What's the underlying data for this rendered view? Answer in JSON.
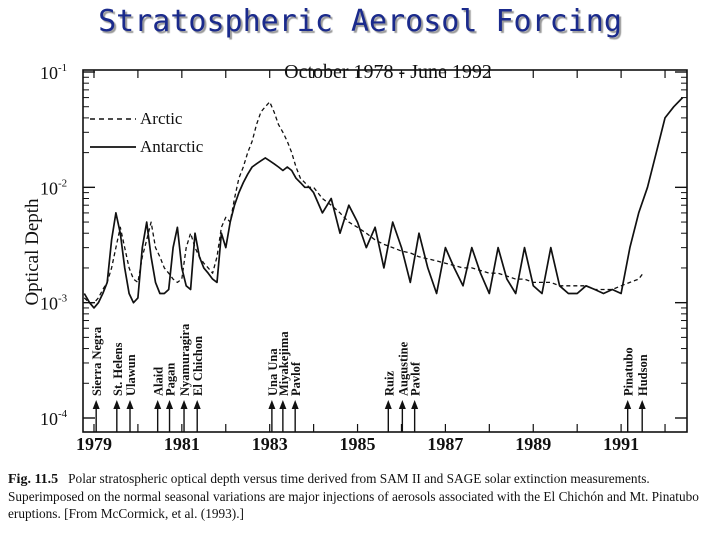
{
  "slide": {
    "title": "Stratospheric Aerosol Forcing"
  },
  "chart_data": {
    "type": "line",
    "title": "October 1978 - June 1992",
    "xlabel": "",
    "ylabel": "Optical Depth",
    "yscale": "log",
    "ylim": [
      0.0001,
      0.1
    ],
    "xlim": [
      1978.75,
      1992.5
    ],
    "yticks": [
      "10-1",
      "10-2",
      "10-3",
      "10-4"
    ],
    "yticks_base": [
      "10",
      "10",
      "10",
      "10"
    ],
    "yticks_exp": [
      "-1",
      "-2",
      "-3",
      "-4"
    ],
    "xticks": [
      1979,
      1981,
      1983,
      1985,
      1987,
      1989,
      1991
    ],
    "xtick_labels": [
      "1979",
      "1981",
      "1983",
      "1985",
      "1987",
      "1989",
      "1991"
    ],
    "grid": false,
    "legend_position": "top-left",
    "series": [
      {
        "name": "Arctic",
        "style": "dashed",
        "x": [
          1978.78,
          1978.9,
          1979.0,
          1979.1,
          1979.2,
          1979.3,
          1979.4,
          1979.5,
          1979.6,
          1979.7,
          1979.8,
          1979.9,
          1980.0,
          1980.1,
          1980.2,
          1980.3,
          1980.4,
          1980.5,
          1980.6,
          1980.7,
          1980.8,
          1980.9,
          1981.0,
          1981.1,
          1981.2,
          1981.3,
          1981.4,
          1981.5,
          1981.6,
          1981.7,
          1981.8,
          1981.9,
          1982.0,
          1982.1,
          1982.2,
          1982.3,
          1982.4,
          1982.5,
          1982.6,
          1982.7,
          1982.8,
          1982.9,
          1983.0,
          1983.1,
          1983.2,
          1983.3,
          1983.4,
          1983.5,
          1983.6,
          1983.7,
          1983.8,
          1983.9,
          1984.0,
          1984.2,
          1984.4,
          1984.6,
          1984.8,
          1985.0,
          1985.2,
          1985.4,
          1985.6,
          1985.8,
          1986.0,
          1986.2,
          1986.4,
          1986.6,
          1986.8,
          1987.0,
          1987.2,
          1987.4,
          1987.6,
          1987.8,
          1988.0,
          1988.2,
          1988.4,
          1988.6,
          1988.8,
          1989.0,
          1989.2,
          1989.4,
          1989.6,
          1989.8,
          1990.0,
          1990.2,
          1990.4,
          1990.6,
          1990.8,
          1991.0,
          1991.2,
          1991.4,
          1991.5
        ],
        "y": [
          0.0011,
          0.001,
          0.001,
          0.0011,
          0.0013,
          0.0015,
          0.002,
          0.003,
          0.0045,
          0.003,
          0.002,
          0.0016,
          0.0015,
          0.0025,
          0.0035,
          0.005,
          0.003,
          0.0025,
          0.002,
          0.0018,
          0.0016,
          0.0015,
          0.0016,
          0.003,
          0.004,
          0.003,
          0.0025,
          0.0022,
          0.002,
          0.0018,
          0.0025,
          0.0045,
          0.0055,
          0.005,
          0.008,
          0.012,
          0.015,
          0.02,
          0.025,
          0.035,
          0.045,
          0.05,
          0.055,
          0.045,
          0.035,
          0.03,
          0.025,
          0.02,
          0.015,
          0.012,
          0.011,
          0.01,
          0.01,
          0.008,
          0.007,
          0.006,
          0.005,
          0.0045,
          0.004,
          0.0035,
          0.0032,
          0.003,
          0.0028,
          0.0027,
          0.0025,
          0.0024,
          0.0023,
          0.0022,
          0.0021,
          0.002,
          0.002,
          0.0019,
          0.0018,
          0.0018,
          0.0017,
          0.0016,
          0.0016,
          0.0015,
          0.0015,
          0.0015,
          0.0014,
          0.0014,
          0.0014,
          0.0014,
          0.0013,
          0.0013,
          0.0013,
          0.0014,
          0.0015,
          0.0016,
          0.0018
        ]
      },
      {
        "name": "Antarctic",
        "style": "solid",
        "x": [
          1978.78,
          1978.9,
          1979.0,
          1979.1,
          1979.2,
          1979.3,
          1979.4,
          1979.5,
          1979.6,
          1979.7,
          1979.8,
          1979.9,
          1980.0,
          1980.1,
          1980.2,
          1980.3,
          1980.4,
          1980.5,
          1980.6,
          1980.7,
          1980.8,
          1980.9,
          1981.0,
          1981.1,
          1981.2,
          1981.3,
          1981.4,
          1981.5,
          1981.6,
          1981.7,
          1981.8,
          1981.9,
          1982.0,
          1982.1,
          1982.2,
          1982.3,
          1982.4,
          1982.5,
          1982.6,
          1982.7,
          1982.8,
          1982.9,
          1983.0,
          1983.1,
          1983.2,
          1983.3,
          1983.4,
          1983.5,
          1983.6,
          1983.7,
          1983.8,
          1983.9,
          1984.0,
          1984.2,
          1984.4,
          1984.6,
          1984.8,
          1985.0,
          1985.2,
          1985.4,
          1985.6,
          1985.8,
          1986.0,
          1986.2,
          1986.4,
          1986.6,
          1986.8,
          1987.0,
          1987.2,
          1987.4,
          1987.6,
          1987.8,
          1988.0,
          1988.2,
          1988.4,
          1988.6,
          1988.8,
          1989.0,
          1989.2,
          1989.4,
          1989.6,
          1989.8,
          1990.0,
          1990.2,
          1990.4,
          1990.6,
          1990.8,
          1991.0,
          1991.2,
          1991.4,
          1991.6,
          1991.8,
          1992.0,
          1992.2,
          1992.4
        ],
        "y": [
          0.0012,
          0.001,
          0.0009,
          0.001,
          0.0012,
          0.0015,
          0.0035,
          0.006,
          0.004,
          0.002,
          0.0012,
          0.001,
          0.0011,
          0.003,
          0.005,
          0.0025,
          0.0015,
          0.0012,
          0.0012,
          0.0013,
          0.003,
          0.0045,
          0.002,
          0.0014,
          0.0013,
          0.004,
          0.0025,
          0.002,
          0.0018,
          0.0016,
          0.0015,
          0.004,
          0.003,
          0.005,
          0.007,
          0.009,
          0.011,
          0.013,
          0.015,
          0.016,
          0.017,
          0.018,
          0.017,
          0.016,
          0.015,
          0.014,
          0.015,
          0.014,
          0.012,
          0.011,
          0.01,
          0.01,
          0.009,
          0.006,
          0.008,
          0.004,
          0.007,
          0.005,
          0.003,
          0.0045,
          0.002,
          0.005,
          0.003,
          0.0015,
          0.004,
          0.002,
          0.0012,
          0.003,
          0.002,
          0.0014,
          0.003,
          0.0018,
          0.0012,
          0.003,
          0.0016,
          0.0012,
          0.003,
          0.0014,
          0.0012,
          0.003,
          0.0014,
          0.0012,
          0.0012,
          0.0014,
          0.0013,
          0.0012,
          0.0013,
          0.0012,
          0.003,
          0.006,
          0.01,
          0.02,
          0.04,
          0.05,
          0.06
        ]
      }
    ],
    "eruptions": [
      {
        "label": "Sierra Negra",
        "x": 1979.05
      },
      {
        "label": "St. Helens",
        "x": 1979.52
      },
      {
        "label": "Ulawun",
        "x": 1979.82
      },
      {
        "label": "Alaid",
        "x": 1980.45
      },
      {
        "label": "Pagan",
        "x": 1980.72
      },
      {
        "label": "Nyamuragira",
        "x": 1981.05
      },
      {
        "label": "El Chichon",
        "x": 1981.35
      },
      {
        "label": "Una Una",
        "x": 1983.05
      },
      {
        "label": "Miyakejima",
        "x": 1983.3
      },
      {
        "label": "Pavlof",
        "x": 1983.58
      },
      {
        "label": "Ruiz",
        "x": 1985.7
      },
      {
        "label": "Augustine",
        "x": 1986.02
      },
      {
        "label": "Pavlof",
        "x": 1986.3
      },
      {
        "label": "Pinatubo",
        "x": 1991.15
      },
      {
        "label": "Hudson",
        "x": 1991.48
      }
    ]
  },
  "caption": {
    "figure_label": "Fig. 11.5",
    "text": "Polar stratospheric optical depth versus time derived from SAM II and SAGE solar extinction measurements. Superimposed on the normal seasonal variations are major injections of aerosols associated with the El Chichón and Mt. Pinatubo eruptions. [From McCormick, et al. (1993).]"
  }
}
